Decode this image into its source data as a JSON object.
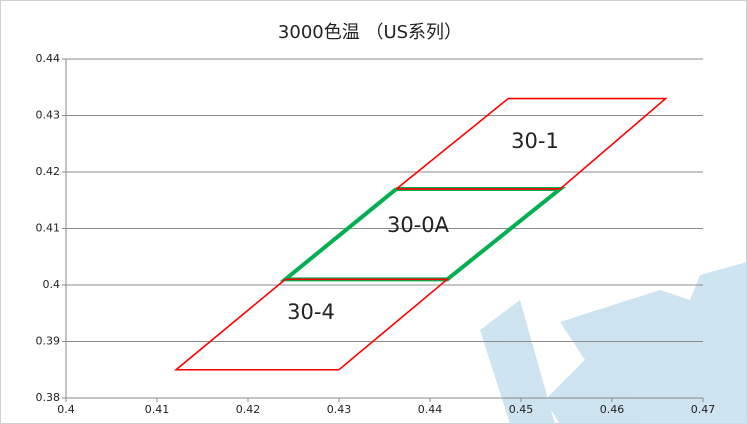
{
  "chart_data": {
    "type": "scatter-polygon",
    "title": "3000色温 （US系列）",
    "xlim": [
      0.4,
      0.47
    ],
    "ylim": [
      0.38,
      0.44
    ],
    "xticks": [
      0.4,
      0.41,
      0.42,
      0.43,
      0.44,
      0.45,
      0.46,
      0.47
    ],
    "yticks": [
      0.38,
      0.39,
      0.4,
      0.41,
      0.42,
      0.43,
      0.44
    ],
    "grid": true,
    "series": [
      {
        "name": "30-0A",
        "color": "#00b050",
        "x": [
          0.4363,
          0.4543,
          0.4419,
          0.4241,
          0.4363
        ],
        "y": [
          0.417,
          0.417,
          0.401,
          0.401,
          0.417
        ]
      },
      {
        "name": "30-1",
        "color": "#ff0000",
        "x": [
          0.4363,
          0.4486,
          0.4659,
          0.4543,
          0.4363
        ],
        "y": [
          0.417,
          0.433,
          0.433,
          0.417,
          0.417
        ]
      },
      {
        "name": "30-4",
        "color": "#ff0000",
        "x": [
          0.4241,
          0.4419,
          0.43,
          0.4121,
          0.4241
        ],
        "y": [
          0.401,
          0.401,
          0.385,
          0.385,
          0.401
        ]
      }
    ]
  }
}
